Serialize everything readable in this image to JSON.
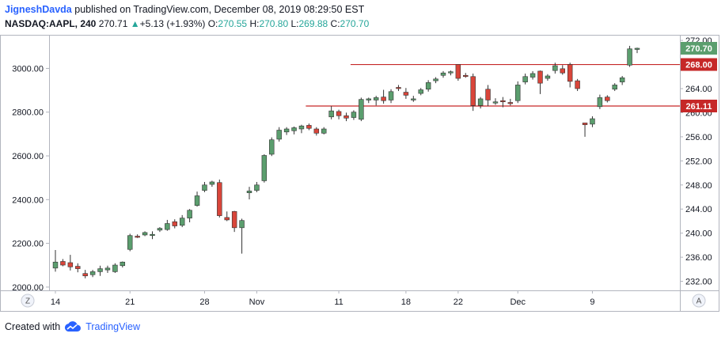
{
  "header": {
    "author": "JigneshDavda",
    "published": "published on TradingView.com, December 08, 2019 08:29:50 EST",
    "symbol": "NASDAQ:AAPL, 240",
    "last": "270.71",
    "change_arrow": "▲",
    "change": "+5.13 (+1.93%)",
    "o_label": "O:",
    "o_value": "270.55",
    "h_label": "H:",
    "h_value": "270.80",
    "l_label": "L:",
    "l_value": "269.88",
    "c_label": "C:",
    "c_value": "270.70"
  },
  "footer": {
    "created": "Created with",
    "brand": "TradingView"
  },
  "buttons": {
    "z": "Z",
    "a": "A"
  },
  "colors": {
    "up": "#5b9e6e",
    "down": "#d9453a",
    "line": "#c62828",
    "price_tag_last": "#5b9e6e",
    "price_tag_level": "#c62828"
  },
  "chart_data": {
    "type": "candlestick",
    "title": "NASDAQ:AAPL, 240",
    "x_tick_labels": [
      "14",
      "21",
      "28",
      "Nov",
      "11",
      "18",
      "22",
      "Dec",
      "9"
    ],
    "left_axis": {
      "ticks": [
        2000,
        2200,
        2400,
        2600,
        2800,
        3000
      ],
      "tick_labels": [
        "2000.00",
        "2200.00",
        "2400.00",
        "2600.00",
        "2800.00",
        "3000.00"
      ]
    },
    "right_axis": {
      "ticks": [
        232,
        236,
        240,
        244,
        248,
        252,
        256,
        260,
        264,
        268,
        272
      ],
      "tick_labels": [
        "232.00",
        "236.00",
        "240.00",
        "244.00",
        "248.00",
        "252.00",
        "256.00",
        "260.00",
        "264.00",
        "268.00",
        "272.00"
      ],
      "ylim": [
        230.5,
        272.8
      ]
    },
    "price_tags": [
      {
        "label": "270.70",
        "value": 270.7,
        "kind": "last"
      },
      {
        "label": "268.00",
        "value": 268.0,
        "kind": "level"
      },
      {
        "label": "261.11",
        "value": 261.11,
        "kind": "level"
      }
    ],
    "lines": [
      {
        "price": 268.0,
        "from_index": 40
      },
      {
        "price": 261.11,
        "from_index": 34
      }
    ],
    "candles": [
      {
        "o": 234.2,
        "h": 237.2,
        "l": 233.6,
        "c": 235.2
      },
      {
        "o": 235.3,
        "h": 235.7,
        "l": 234.5,
        "c": 234.7
      },
      {
        "o": 235.1,
        "h": 236.4,
        "l": 233.8,
        "c": 234.4
      },
      {
        "o": 234.5,
        "h": 235.0,
        "l": 233.5,
        "c": 234.1
      },
      {
        "o": 233.3,
        "h": 233.9,
        "l": 232.5,
        "c": 232.9
      },
      {
        "o": 233.1,
        "h": 233.9,
        "l": 232.7,
        "c": 233.6
      },
      {
        "o": 233.6,
        "h": 234.6,
        "l": 232.9,
        "c": 234.1
      },
      {
        "o": 233.9,
        "h": 234.6,
        "l": 233.4,
        "c": 234.2
      },
      {
        "o": 233.6,
        "h": 235.0,
        "l": 233.4,
        "c": 234.7
      },
      {
        "o": 234.6,
        "h": 235.3,
        "l": 234.3,
        "c": 235.2
      },
      {
        "o": 237.3,
        "h": 239.9,
        "l": 237.0,
        "c": 239.6
      },
      {
        "o": 239.5,
        "h": 239.8,
        "l": 239.2,
        "c": 239.4
      },
      {
        "o": 239.7,
        "h": 240.3,
        "l": 239.5,
        "c": 240.1
      },
      {
        "o": 239.7,
        "h": 240.3,
        "l": 239.0,
        "c": 239.8
      },
      {
        "o": 240.5,
        "h": 241.0,
        "l": 240.2,
        "c": 240.8
      },
      {
        "o": 240.6,
        "h": 242.2,
        "l": 240.4,
        "c": 241.6
      },
      {
        "o": 241.9,
        "h": 242.3,
        "l": 240.8,
        "c": 241.2
      },
      {
        "o": 241.3,
        "h": 243.0,
        "l": 241.0,
        "c": 242.5
      },
      {
        "o": 242.5,
        "h": 244.0,
        "l": 241.8,
        "c": 243.8
      },
      {
        "o": 244.6,
        "h": 246.9,
        "l": 244.4,
        "c": 246.2
      },
      {
        "o": 247.1,
        "h": 248.5,
        "l": 246.8,
        "c": 248.0
      },
      {
        "o": 248.1,
        "h": 248.7,
        "l": 247.7,
        "c": 248.5
      },
      {
        "o": 248.4,
        "h": 248.9,
        "l": 242.6,
        "c": 242.9
      },
      {
        "o": 242.6,
        "h": 243.6,
        "l": 242.0,
        "c": 242.2
      },
      {
        "o": 243.6,
        "h": 243.7,
        "l": 240.2,
        "c": 240.9
      },
      {
        "o": 240.9,
        "h": 242.4,
        "l": 236.6,
        "c": 242.1
      },
      {
        "o": 246.7,
        "h": 247.7,
        "l": 245.6,
        "c": 247.0
      },
      {
        "o": 247.1,
        "h": 248.5,
        "l": 246.8,
        "c": 248.0
      },
      {
        "o": 248.7,
        "h": 253.1,
        "l": 248.4,
        "c": 252.9
      },
      {
        "o": 253.1,
        "h": 255.9,
        "l": 252.8,
        "c": 255.5
      },
      {
        "o": 255.6,
        "h": 257.6,
        "l": 255.2,
        "c": 257.1
      },
      {
        "o": 256.8,
        "h": 257.6,
        "l": 256.3,
        "c": 257.3
      },
      {
        "o": 257.0,
        "h": 257.7,
        "l": 256.4,
        "c": 257.5
      },
      {
        "o": 257.3,
        "h": 258.0,
        "l": 256.6,
        "c": 257.8
      },
      {
        "o": 257.9,
        "h": 258.2,
        "l": 257.1,
        "c": 257.4
      },
      {
        "o": 257.3,
        "h": 257.6,
        "l": 256.2,
        "c": 256.6
      },
      {
        "o": 256.6,
        "h": 257.6,
        "l": 256.4,
        "c": 257.3
      },
      {
        "o": 259.3,
        "h": 261.1,
        "l": 258.9,
        "c": 260.3
      },
      {
        "o": 260.2,
        "h": 260.5,
        "l": 258.9,
        "c": 259.5
      },
      {
        "o": 259.5,
        "h": 260.0,
        "l": 258.6,
        "c": 259.1
      },
      {
        "o": 259.2,
        "h": 260.4,
        "l": 258.8,
        "c": 260.1
      },
      {
        "o": 258.9,
        "h": 262.5,
        "l": 258.6,
        "c": 262.2
      },
      {
        "o": 262.1,
        "h": 262.5,
        "l": 261.6,
        "c": 262.3
      },
      {
        "o": 262.1,
        "h": 262.8,
        "l": 261.2,
        "c": 262.5
      },
      {
        "o": 262.6,
        "h": 263.8,
        "l": 261.5,
        "c": 262.0
      },
      {
        "o": 262.1,
        "h": 263.9,
        "l": 261.6,
        "c": 263.5
      },
      {
        "o": 264.2,
        "h": 264.6,
        "l": 263.6,
        "c": 264.1
      },
      {
        "o": 263.4,
        "h": 264.1,
        "l": 262.3,
        "c": 262.9
      },
      {
        "o": 262.3,
        "h": 262.8,
        "l": 261.8,
        "c": 262.3
      },
      {
        "o": 263.2,
        "h": 264.1,
        "l": 262.9,
        "c": 263.8
      },
      {
        "o": 263.9,
        "h": 265.4,
        "l": 263.5,
        "c": 265.0
      },
      {
        "o": 265.3,
        "h": 265.9,
        "l": 264.9,
        "c": 265.6
      },
      {
        "o": 266.2,
        "h": 266.9,
        "l": 265.8,
        "c": 266.6
      },
      {
        "o": 266.6,
        "h": 267.0,
        "l": 266.2,
        "c": 266.8
      },
      {
        "o": 268.0,
        "h": 268.0,
        "l": 265.3,
        "c": 265.7
      },
      {
        "o": 266.2,
        "h": 266.6,
        "l": 265.8,
        "c": 266.0
      },
      {
        "o": 266.0,
        "h": 266.5,
        "l": 260.3,
        "c": 261.2
      },
      {
        "o": 261.2,
        "h": 262.6,
        "l": 260.7,
        "c": 262.3
      },
      {
        "o": 263.9,
        "h": 264.6,
        "l": 261.1,
        "c": 262.1
      },
      {
        "o": 261.7,
        "h": 262.4,
        "l": 261.3,
        "c": 261.8
      },
      {
        "o": 262.0,
        "h": 262.6,
        "l": 260.9,
        "c": 261.9
      },
      {
        "o": 261.7,
        "h": 262.3,
        "l": 261.2,
        "c": 261.6
      },
      {
        "o": 262.0,
        "h": 265.2,
        "l": 261.6,
        "c": 264.6
      },
      {
        "o": 265.1,
        "h": 266.5,
        "l": 264.7,
        "c": 266.0
      },
      {
        "o": 265.9,
        "h": 266.9,
        "l": 265.5,
        "c": 266.5
      },
      {
        "o": 266.9,
        "h": 267.0,
        "l": 263.1,
        "c": 264.9
      },
      {
        "o": 265.7,
        "h": 266.4,
        "l": 265.3,
        "c": 266.1
      },
      {
        "o": 267.0,
        "h": 268.3,
        "l": 266.5,
        "c": 267.8
      },
      {
        "o": 267.3,
        "h": 267.9,
        "l": 266.3,
        "c": 266.6
      },
      {
        "o": 268.0,
        "h": 268.3,
        "l": 264.2,
        "c": 265.2
      },
      {
        "o": 265.3,
        "h": 265.6,
        "l": 263.6,
        "c": 264.0
      },
      {
        "o": 258.3,
        "h": 258.3,
        "l": 256.0,
        "c": 258.0
      },
      {
        "o": 258.1,
        "h": 259.4,
        "l": 257.6,
        "c": 259.0
      },
      {
        "o": 261.0,
        "h": 263.0,
        "l": 260.6,
        "c": 262.5
      },
      {
        "o": 262.6,
        "h": 262.9,
        "l": 261.7,
        "c": 262.0
      },
      {
        "o": 263.9,
        "h": 264.9,
        "l": 263.6,
        "c": 264.6
      },
      {
        "o": 265.1,
        "h": 266.1,
        "l": 264.6,
        "c": 265.8
      },
      {
        "o": 267.9,
        "h": 271.1,
        "l": 267.6,
        "c": 270.6
      },
      {
        "o": 270.6,
        "h": 270.8,
        "l": 269.9,
        "c": 270.7
      }
    ]
  }
}
